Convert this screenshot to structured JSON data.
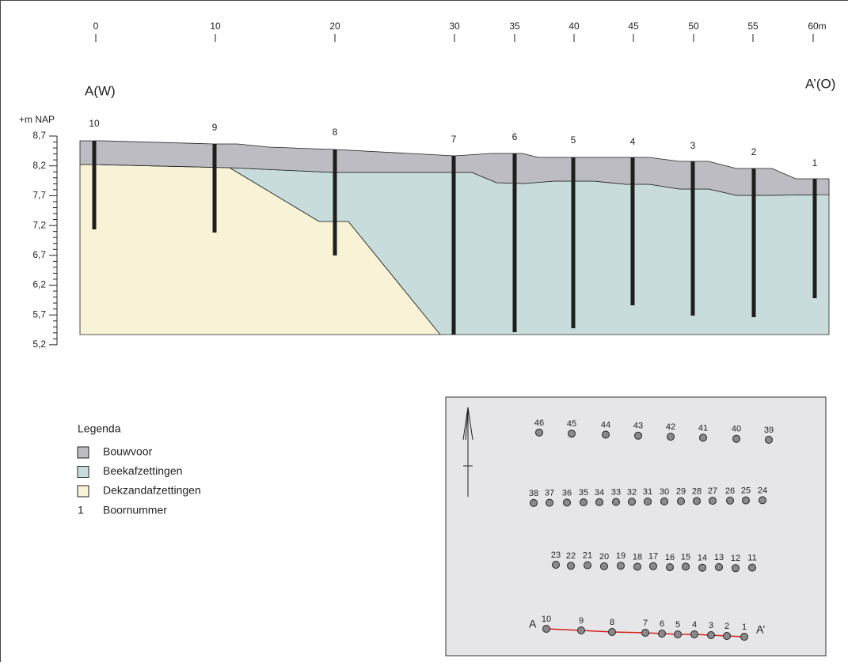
{
  "section": {
    "x_labels": [
      "0",
      "10",
      "20",
      "30",
      "35",
      "40",
      "45",
      "50",
      "55",
      "60m"
    ],
    "left_label": "A(W)",
    "right_label": "A’(O)",
    "y_unit": "+m NAP",
    "y_labels": [
      "8,7",
      "8,2",
      "7,7",
      "7,2",
      "6,7",
      "6,2",
      "5,7",
      "5,2"
    ],
    "boreholes": [
      "10",
      "9",
      "8",
      "7",
      "6",
      "5",
      "4",
      "3",
      "2",
      "1"
    ]
  },
  "legend": {
    "title": "Legenda",
    "items": [
      "Bouwvoor",
      "Beekafzettingen",
      "Dekzandafzettingen"
    ],
    "number_sample": "1",
    "number_label": "Boornummer"
  },
  "map": {
    "points": [
      "1",
      "2",
      "3",
      "4",
      "5",
      "6",
      "7",
      "8",
      "9",
      "10",
      "11",
      "12",
      "13",
      "14",
      "15",
      "16",
      "17",
      "18",
      "19",
      "20",
      "21",
      "22",
      "23",
      "24",
      "25",
      "26",
      "27",
      "28",
      "29",
      "30",
      "31",
      "32",
      "33",
      "34",
      "35",
      "36",
      "37",
      "38",
      "39",
      "40",
      "41",
      "42",
      "43",
      "44",
      "45",
      "46"
    ],
    "start": "A",
    "end": "A’"
  }
}
